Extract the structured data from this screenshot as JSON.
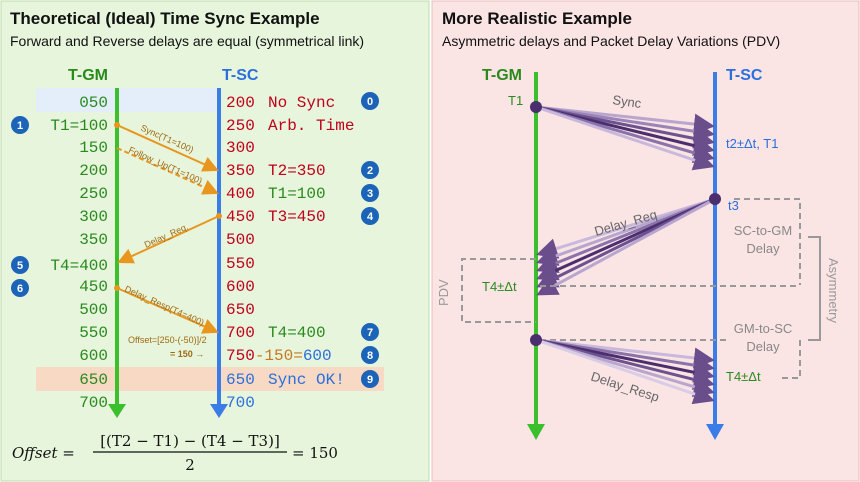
{
  "left": {
    "title": "Theoretical (Ideal) Time Sync Example",
    "subtitle": "Forward and Reverse delays are equal (symmetrical link)",
    "gm_header": "T-GM",
    "sc_header": "T-SC",
    "gm_times": [
      "050",
      "150",
      "200",
      "250",
      "300",
      "350",
      "450",
      "500",
      "550",
      "600",
      "650",
      "700"
    ],
    "gm_labeled": [
      {
        "text": "T1=100",
        "badge": "1"
      },
      {
        "text": "T4=400",
        "badge": "5"
      }
    ],
    "sc_rows": [
      {
        "time": "200",
        "label": "No Sync",
        "badge": "0"
      },
      {
        "time": "250",
        "label": "Arb. Time",
        "badge": ""
      },
      {
        "time": "300",
        "label": "",
        "badge": ""
      },
      {
        "time": "350",
        "label": "T2=350",
        "badge": "2"
      },
      {
        "time": "400",
        "label": "T1=100",
        "badge": "3"
      },
      {
        "time": "450",
        "label": "T3=450",
        "badge": "4"
      },
      {
        "time": "500",
        "label": "",
        "badge": ""
      },
      {
        "time": "550",
        "label": "",
        "badge": ""
      },
      {
        "time": "600",
        "label": "",
        "badge": ""
      },
      {
        "time": "650",
        "label": "",
        "badge": ""
      },
      {
        "time": "700",
        "label": "T4=400",
        "badge": "7"
      }
    ],
    "calc_a": "750",
    "calc_b": "-150=",
    "calc_c": "600",
    "calc_badge": "8",
    "sync_ok_time": "650",
    "sync_ok_label": "Sync OK!",
    "sync_ok_badge": "9",
    "sc_final": "700",
    "badge6": "6",
    "messages": {
      "sync": "Sync(T1=100)",
      "follow_up": "Follow_Up(T1=100)",
      "delay_req": "Delay_Req.",
      "delay_resp": "Delay_Resp(T4=400)",
      "offset_calc": "Offset=[250-(-50)]/2",
      "offset_result": "= 150 →"
    },
    "formula": {
      "lhs": "Offset =",
      "numerator": "[(T2 − T1) − (T4 − T3)]",
      "denominator": "2",
      "rhs": "= 150"
    }
  },
  "right": {
    "title": "More Realistic Example",
    "subtitle": "Asymmetric delays and Packet Delay Variations (PDV)",
    "gm_header": "T-GM",
    "sc_header": "T-SC",
    "t1": "T1",
    "sync": "Sync",
    "t2": "t2±Δt, T1",
    "t3": "t3",
    "delay_req": "Delay_Req",
    "sc_to_gm": "SC-to-GM",
    "sc_to_gm_delay": "Delay",
    "t4_left": "T4±Δt",
    "pdv": "PDV",
    "asymmetry": "Asymmetry",
    "gm_to_sc": "GM-to-SC",
    "gm_to_sc_delay": "Delay",
    "t4_right": "T4±Δt",
    "delay_resp": "Delay_Resp"
  },
  "colors": {
    "left_bg": "#e6f5dc",
    "right_bg": "#fbe4e4",
    "gm_line": "#3bbf2c",
    "sc_line": "#3b7de8",
    "red_text": "#c0001a",
    "green_text": "#2a8a1e",
    "blue_text": "#2a6fdd",
    "orange": "#e8961e",
    "badge": "#1c64b8",
    "purple_dark": "#4b2e6e",
    "purple_light": "#b9a6cf"
  }
}
